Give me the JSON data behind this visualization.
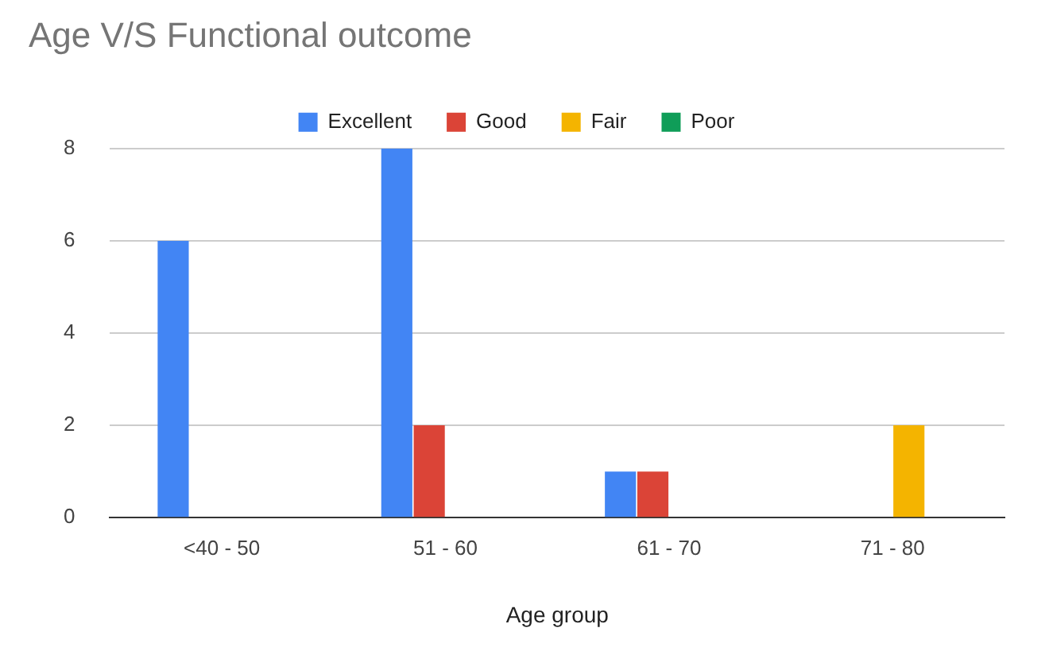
{
  "chart_data": {
    "type": "bar",
    "title": "Age V/S Functional outcome",
    "xlabel": "Age group",
    "categories": [
      "<40 - 50",
      "51 - 60",
      "61 - 70",
      "71 - 80"
    ],
    "series": [
      {
        "name": "Excellent",
        "color": "#4285f4",
        "values": [
          6,
          8,
          1,
          0
        ]
      },
      {
        "name": "Good",
        "color": "#db4437",
        "values": [
          0,
          2,
          1,
          0
        ]
      },
      {
        "name": "Fair",
        "color": "#f4b400",
        "values": [
          0,
          0,
          0,
          2
        ]
      },
      {
        "name": "Poor",
        "color": "#0f9d58",
        "values": [
          0,
          0,
          0,
          0
        ]
      }
    ],
    "ylim": [
      0,
      8
    ],
    "yticks": [
      0,
      2,
      4,
      6,
      8
    ],
    "grid": "y",
    "legend": "top"
  }
}
